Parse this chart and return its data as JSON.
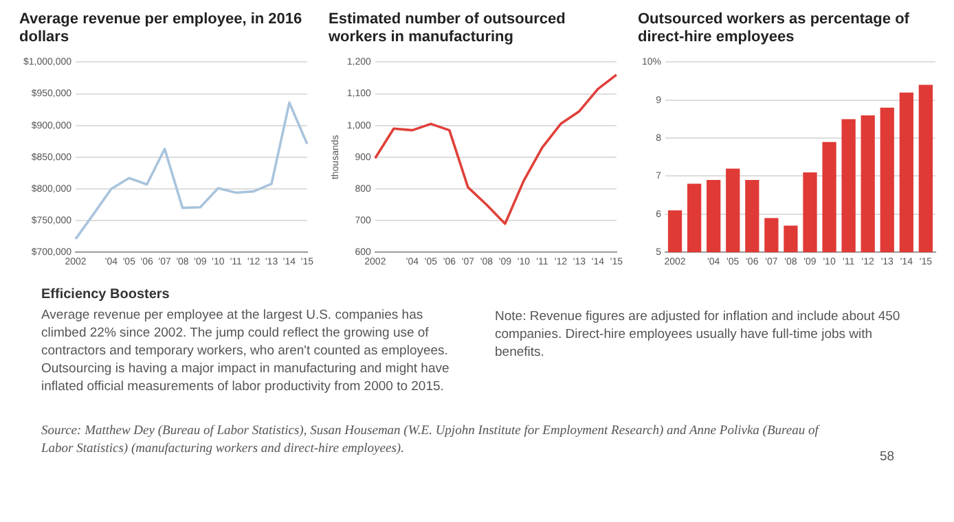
{
  "chart_data": [
    {
      "type": "line",
      "title": "Average revenue per employee, in 2016 dollars",
      "categories": [
        "2002",
        null,
        "'04",
        "'05",
        "'06",
        "'07",
        "'08",
        "'09",
        "'10",
        "'11",
        "'12",
        "'13",
        "'14",
        "'15"
      ],
      "series": [
        {
          "color": "#a9c4dc",
          "values": [
            721000,
            760000,
            800000,
            817000,
            807000,
            863000,
            770000,
            771000,
            801000,
            794000,
            796000,
            808000,
            936000,
            871000
          ]
        }
      ],
      "ylim": [
        700000,
        1000000
      ],
      "yticks": [
        {
          "value": 700000,
          "label": "$700,000"
        },
        {
          "value": 750000,
          "label": "$750,000"
        },
        {
          "value": 800000,
          "label": "$800,000"
        },
        {
          "value": 850000,
          "label": "$850,000"
        },
        {
          "value": 900000,
          "label": "$900,000"
        },
        {
          "value": 950000,
          "label": "$950,000"
        },
        {
          "value": 1000000,
          "label": "$1,000,000"
        }
      ],
      "grid": "y",
      "marker": "none"
    },
    {
      "type": "line",
      "title": "Estimated number of outsourced workers in manufacturing",
      "ylabel": "thousands",
      "categories": [
        "2002",
        null,
        "'04",
        "'05",
        "'06",
        "'07",
        "'08",
        "'09",
        "'10",
        "'11",
        "'12",
        "'13",
        "'14",
        "'15"
      ],
      "series": [
        {
          "color": "#e0403a",
          "values": [
            897,
            990,
            985,
            1005,
            985,
            805,
            750,
            690,
            825,
            930,
            1005,
            1045,
            1115,
            1160
          ]
        }
      ],
      "ylim": [
        600,
        1200
      ],
      "yticks": [
        600,
        700,
        800,
        900,
        {
          "value": 1000,
          "label": "1,000"
        },
        {
          "value": 1100,
          "label": "1,100"
        },
        {
          "value": 1200,
          "label": "1,200"
        }
      ],
      "grid": "y",
      "marker": "none"
    },
    {
      "type": "bar",
      "title": "Outsourced workers as percentage of direct-hire employees",
      "categories": [
        "2002",
        null,
        "'04",
        "'05",
        "'06",
        "'07",
        "'08",
        "'09",
        "'10",
        "'11",
        "'12",
        "'13",
        "'14",
        "'15"
      ],
      "series": [
        {
          "color": "#e03a36",
          "values": [
            6.1,
            6.8,
            6.9,
            7.2,
            6.9,
            5.9,
            5.7,
            7.1,
            7.9,
            8.5,
            8.6,
            8.8,
            9.2,
            9.4
          ]
        }
      ],
      "ylim": [
        5,
        10
      ],
      "yticks": [
        5,
        6,
        7,
        8,
        9,
        {
          "value": 10,
          "label": "10%"
        }
      ],
      "grid": "y"
    },
    {
      "type": "other",
      "title": "Efficiency Boosters",
      "annotations": [
        "Average revenue per employee at the largest U.S. companies has climbed 22% since 2002. The jump could reflect the growing use of contractors and temporary workers, who aren't counted as employees. Outsourcing is having a major impact in manufacturing and might have inflated official measurements of labor productivity from 2000 to 2015.",
        "Note: Revenue figures are adjusted for inflation and include about 450 companies. Direct-hire employees usually have full-time jobs with benefits.",
        "Source: Matthew Dey (Bureau of Labor Statistics), Susan Houseman (W.E. Upjohn Institute for Employment Research) and Anne Polivka (Bureau of Labor Statistics) (manufacturing workers and direct-hire employees).",
        "58"
      ]
    }
  ]
}
